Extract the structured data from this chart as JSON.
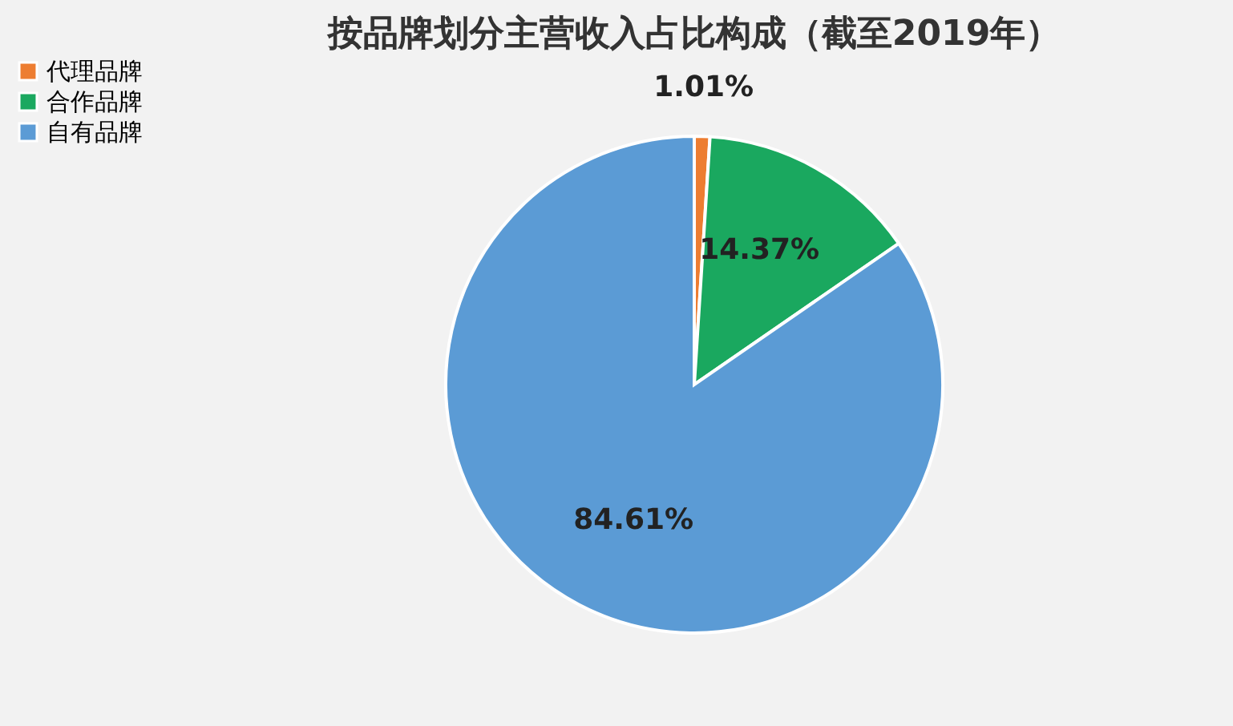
{
  "chart_data": {
    "type": "pie",
    "title": "按品牌划分主营收入占比构成（截至2019年）",
    "categories": [
      "代理品牌",
      "合作品牌",
      "自有品牌"
    ],
    "values": [
      1.01,
      14.37,
      84.61
    ],
    "colors": [
      "#ed7d31",
      "#1aa85f",
      "#5b9bd5"
    ],
    "value_labels": [
      "1.01%",
      "14.37%",
      "84.61%"
    ],
    "legend": "left"
  }
}
